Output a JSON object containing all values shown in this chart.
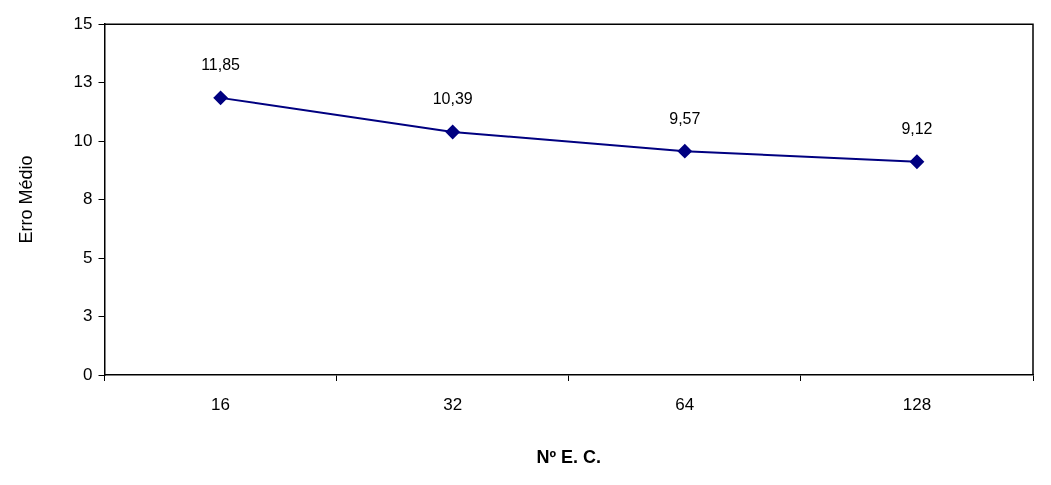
{
  "chart_data": {
    "type": "line",
    "xlabel": "Nº E. C.",
    "ylabel": "Erro Médio",
    "categories": [
      "16",
      "32",
      "64",
      "128"
    ],
    "series": [
      {
        "color": "#000080",
        "values": [
          11.85,
          10.39,
          9.57,
          9.12
        ],
        "value_labels": [
          "11,85",
          "10,39",
          "9,57",
          "9,12"
        ]
      }
    ],
    "ylim": [
      0,
      15
    ],
    "yticks": [
      0,
      {
        "value": 2.5,
        "label": "3"
      },
      5,
      {
        "value": 7.5,
        "label": "8"
      },
      10,
      {
        "value": 12.5,
        "label": "13"
      },
      15
    ],
    "grid": false,
    "legend": false,
    "marker": "diamond",
    "line_style": "solid"
  }
}
